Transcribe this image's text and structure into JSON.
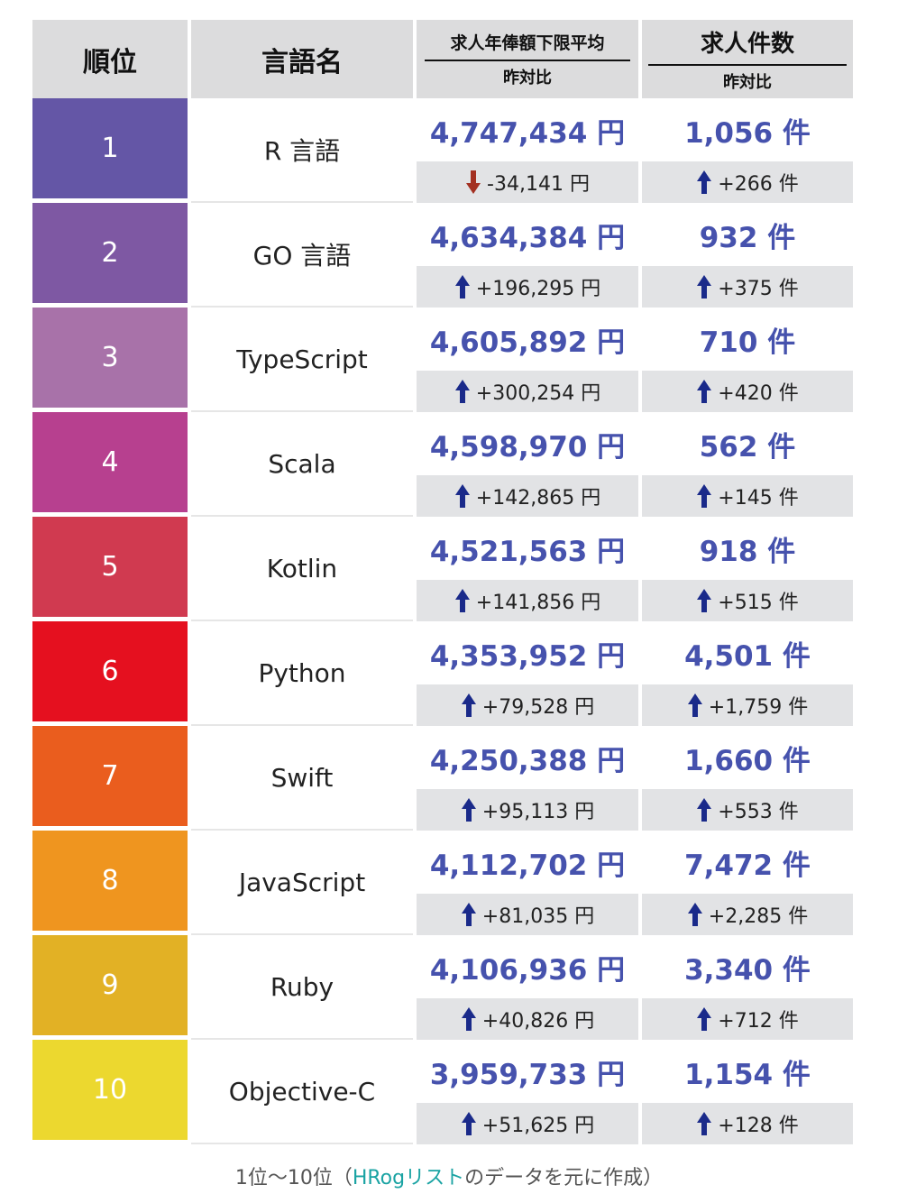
{
  "headers": {
    "rank": "順位",
    "language": "言語名",
    "salary": "求人年俸額下限平均",
    "salary_sub": "昨対比",
    "jobs": "求人件数",
    "jobs_sub": "昨対比"
  },
  "rows": [
    {
      "rank": "1",
      "name": "R 言語",
      "salary": "4,747,434 円",
      "salary_change": "-34,141 円",
      "salary_dir": "down",
      "jobs": "1,056 件",
      "jobs_change": "+266 件",
      "jobs_dir": "up",
      "color": "#6456a6"
    },
    {
      "rank": "2",
      "name": "GO 言語",
      "salary": "4,634,384 円",
      "salary_change": "+196,295 円",
      "salary_dir": "up",
      "jobs": "932 件",
      "jobs_change": "+375 件",
      "jobs_dir": "up",
      "color": "#7e58a3"
    },
    {
      "rank": "3",
      "name": "TypeScript",
      "salary": "4,605,892 円",
      "salary_change": "+300,254 円",
      "salary_dir": "up",
      "jobs": "710 件",
      "jobs_change": "+420 件",
      "jobs_dir": "up",
      "color": "#a872a9"
    },
    {
      "rank": "4",
      "name": "Scala",
      "salary": "4,598,970 円",
      "salary_change": "+142,865 円",
      "salary_dir": "up",
      "jobs": "562 件",
      "jobs_change": "+145 件",
      "jobs_dir": "up",
      "color": "#b7408f"
    },
    {
      "rank": "5",
      "name": "Kotlin",
      "salary": "4,521,563 円",
      "salary_change": "+141,856 円",
      "salary_dir": "up",
      "jobs": "918 件",
      "jobs_change": "+515 件",
      "jobs_dir": "up",
      "color": "#d03a50"
    },
    {
      "rank": "6",
      "name": "Python",
      "salary": "4,353,952 円",
      "salary_change": "+79,528 円",
      "salary_dir": "up",
      "jobs": "4,501 件",
      "jobs_change": "+1,759 件",
      "jobs_dir": "up",
      "color": "#e5101f"
    },
    {
      "rank": "7",
      "name": "Swift",
      "salary": "4,250,388 円",
      "salary_change": "+95,113 円",
      "salary_dir": "up",
      "jobs": "1,660 件",
      "jobs_change": "+553 件",
      "jobs_dir": "up",
      "color": "#ea5d1e"
    },
    {
      "rank": "8",
      "name": "JavaScript",
      "salary": "4,112,702 円",
      "salary_change": "+81,035 円",
      "salary_dir": "up",
      "jobs": "7,472 件",
      "jobs_change": "+2,285 件",
      "jobs_dir": "up",
      "color": "#ef951f"
    },
    {
      "rank": "9",
      "name": "Ruby",
      "salary": "4,106,936 円",
      "salary_change": "+40,826 円",
      "salary_dir": "up",
      "jobs": "3,340 件",
      "jobs_change": "+712 件",
      "jobs_dir": "up",
      "color": "#e2b125"
    },
    {
      "rank": "10",
      "name": "Objective-C",
      "salary": "3,959,733 円",
      "salary_change": "+51,625 円",
      "salary_dir": "up",
      "jobs": "1,154 件",
      "jobs_change": "+128 件",
      "jobs_dir": "up",
      "color": "#ecd82f"
    }
  ],
  "caption": {
    "before": "1位〜10位（",
    "link": "HRogリスト",
    "after": "のデータを元に作成）"
  },
  "colors": {
    "value_text": "#4652ad",
    "arrow_up": "#1a2a8a",
    "arrow_down": "#a33021",
    "link": "#1aa3a3"
  }
}
